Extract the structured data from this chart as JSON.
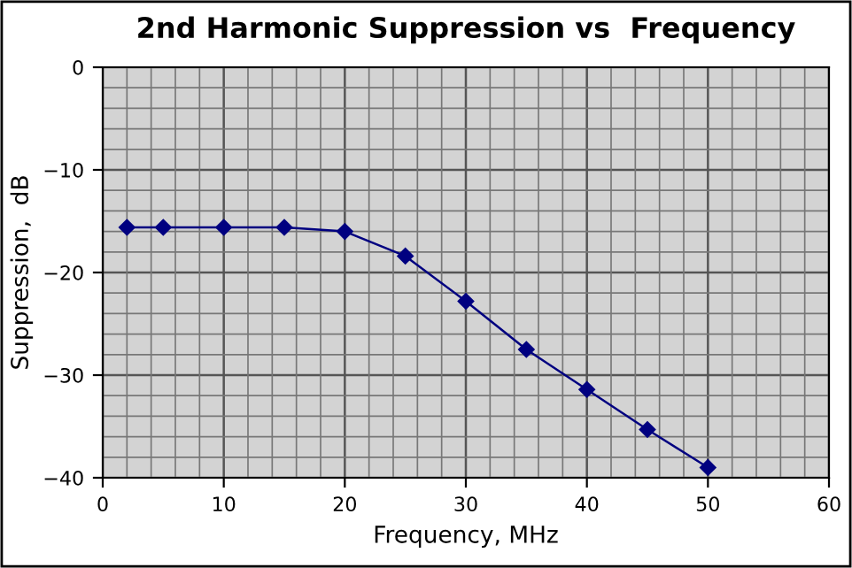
{
  "chart_data": {
    "type": "line",
    "title": "2nd Harmonic Suppression vs  Frequency",
    "xlabel": "Frequency, MHz",
    "ylabel": "Suppression,  dB",
    "x": [
      2,
      5,
      10,
      15,
      20,
      25,
      30,
      35,
      40,
      45,
      50
    ],
    "series": [
      {
        "color": "#000080",
        "values": [
          -15.6,
          -15.6,
          -15.6,
          -15.6,
          -16.0,
          -18.4,
          -22.8,
          -27.5,
          -31.4,
          -35.3,
          -39.0
        ]
      }
    ],
    "xlim": [
      0,
      60
    ],
    "ylim": [
      -40,
      0
    ],
    "xticks": [
      0,
      10,
      20,
      30,
      40,
      50,
      60
    ],
    "yticks": [
      -40,
      -30,
      -20,
      -10,
      0
    ],
    "grid": true,
    "marker": "diamond",
    "line_style": "solid",
    "legend": false
  }
}
